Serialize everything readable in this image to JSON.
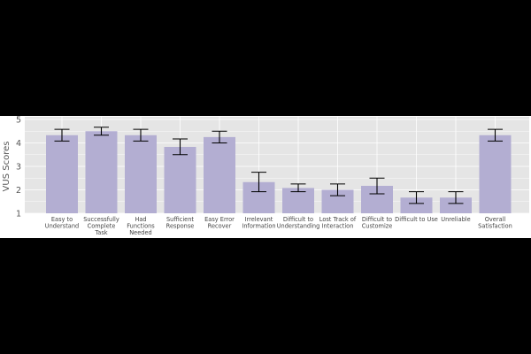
{
  "chart_data": {
    "type": "bar",
    "ylabel": "VUS Scores",
    "ylim": [
      1,
      5
    ],
    "yticks": [
      1,
      2,
      3,
      4,
      5
    ],
    "grid": true,
    "categories": [
      [
        "Easy to",
        "Understand"
      ],
      [
        "Successfully",
        "Complete",
        "Task"
      ],
      [
        "Had",
        "Functions",
        "Needed"
      ],
      [
        "Sufficient",
        "Response"
      ],
      [
        "Easy Error",
        "Recover"
      ],
      [
        "Irrelevant",
        "Information"
      ],
      [
        "Difficult to",
        "Understanding"
      ],
      [
        "Lost Track of",
        "Interaction"
      ],
      [
        "Difficult to",
        "Customize"
      ],
      [
        "Difficult to Use"
      ],
      [
        "Unreliable"
      ],
      [
        "Overall",
        "Satisfaction"
      ]
    ],
    "values": [
      4.33,
      4.5,
      4.33,
      3.83,
      4.25,
      2.33,
      2.08,
      2.0,
      2.17,
      1.67,
      1.67,
      4.33
    ],
    "error_low": [
      4.08,
      4.33,
      4.08,
      3.5,
      4.0,
      1.92,
      1.92,
      1.75,
      1.83,
      1.42,
      1.42,
      4.08
    ],
    "error_high": [
      4.58,
      4.67,
      4.58,
      4.17,
      4.5,
      2.75,
      2.25,
      2.25,
      2.5,
      1.92,
      1.92,
      4.58
    ],
    "colors": {
      "bar": "#b3aed2",
      "plot_background": "#e5e5e5",
      "grid": "#ffffff",
      "errorbar": "#000000"
    }
  }
}
